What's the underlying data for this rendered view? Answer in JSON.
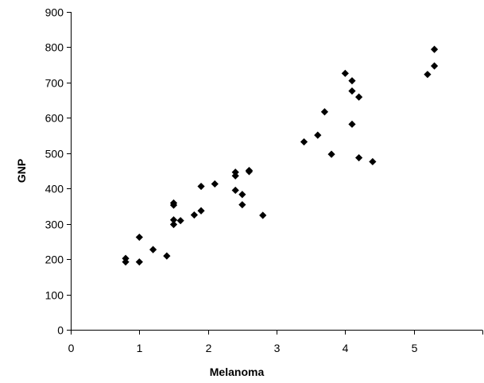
{
  "chart_data": {
    "type": "scatter",
    "title": "",
    "xlabel": "Melanoma",
    "ylabel": "GNP",
    "xlim": [
      0,
      6
    ],
    "ylim": [
      0,
      900
    ],
    "x_ticks": [
      0,
      1,
      2,
      3,
      4,
      5
    ],
    "y_ticks": [
      0,
      100,
      200,
      300,
      400,
      500,
      600,
      700,
      800,
      900
    ],
    "grid": false,
    "legend": "none",
    "marker": "diamond",
    "marker_color": "#000000",
    "series": [
      {
        "points": [
          [
            0.8,
            202
          ],
          [
            0.8,
            192
          ],
          [
            1.0,
            262
          ],
          [
            1.0,
            192
          ],
          [
            1.2,
            227
          ],
          [
            1.4,
            209
          ],
          [
            1.5,
            359
          ],
          [
            1.5,
            353
          ],
          [
            1.5,
            311
          ],
          [
            1.5,
            298
          ],
          [
            1.6,
            309
          ],
          [
            1.8,
            325
          ],
          [
            1.9,
            337
          ],
          [
            1.9,
            406
          ],
          [
            2.1,
            413
          ],
          [
            2.4,
            446
          ],
          [
            2.4,
            436
          ],
          [
            2.4,
            395
          ],
          [
            2.5,
            383
          ],
          [
            2.5,
            354
          ],
          [
            2.6,
            451
          ],
          [
            2.6,
            448
          ],
          [
            2.8,
            324
          ],
          [
            3.4,
            532
          ],
          [
            3.6,
            551
          ],
          [
            3.7,
            617
          ],
          [
            3.8,
            497
          ],
          [
            4.0,
            726
          ],
          [
            4.1,
            705
          ],
          [
            4.1,
            676
          ],
          [
            4.1,
            582
          ],
          [
            4.2,
            659
          ],
          [
            4.2,
            487
          ],
          [
            4.4,
            476
          ],
          [
            5.2,
            723
          ],
          [
            5.3,
            794
          ],
          [
            5.3,
            747
          ]
        ]
      }
    ]
  }
}
